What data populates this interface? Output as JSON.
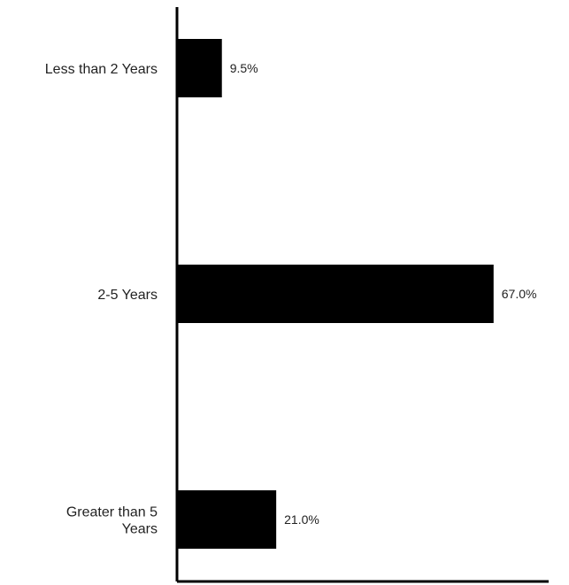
{
  "chart_data": {
    "type": "bar",
    "orientation": "horizontal",
    "categories": [
      "Less than 2 Years",
      "2-5 Years",
      "Greater than 5 Years"
    ],
    "category_lines": [
      [
        "Less than 2 Years"
      ],
      [
        "2-5 Years"
      ],
      [
        "Greater than 5",
        "Years"
      ]
    ],
    "values": [
      9.5,
      67.0,
      21.0
    ],
    "value_labels": [
      "9.5%",
      "67.0%",
      "21.0%"
    ],
    "unit": "%",
    "title": "",
    "xlabel": "",
    "ylabel": "",
    "grid": false,
    "bar_color": "#000000"
  }
}
